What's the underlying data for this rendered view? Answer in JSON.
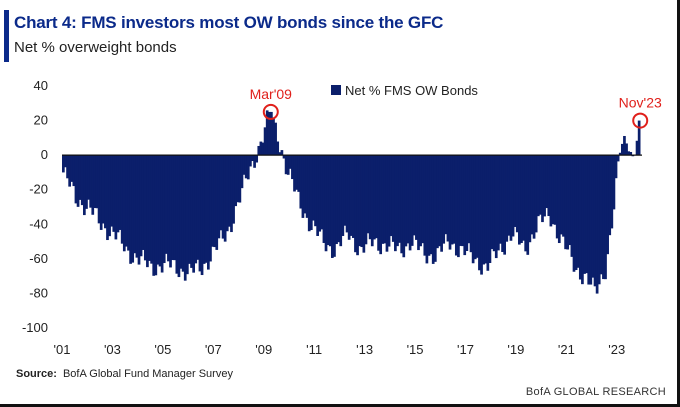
{
  "header": {
    "title": "Chart 4: FMS investors most OW bonds since the GFC",
    "subtitle": "Net % overweight bonds"
  },
  "footer": {
    "source_label": "Source:",
    "source_text": "BofA Global Fund Manager Survey",
    "brand": "BofA GLOBAL RESEARCH"
  },
  "colors": {
    "bar": "#0b1f6b",
    "highlight": "#e0201b",
    "title": "#0b2a8a"
  },
  "chart_data": {
    "type": "bar",
    "title": "Chart 4: FMS investors most OW bonds since the GFC",
    "ylabel": "Net % overweight bonds",
    "ylim": [
      -100,
      40
    ],
    "yticks": [
      40,
      20,
      0,
      -20,
      -40,
      -60,
      -80,
      -100
    ],
    "x_start": 2001,
    "x_end": 2024,
    "x_tick_labels": [
      "'01",
      "'03",
      "'05",
      "'07",
      "'09",
      "'11",
      "'13",
      "'15",
      "'17",
      "'19",
      "'21",
      "'23"
    ],
    "x_tick_years": [
      2001,
      2003,
      2005,
      2007,
      2009,
      2011,
      2013,
      2015,
      2017,
      2019,
      2021,
      2023
    ],
    "legend": "Net % FMS OW Bonds",
    "legend_position": "top-center",
    "annotations": [
      {
        "label": "Mar'09",
        "year": 2009.2,
        "value": 25
      },
      {
        "label": "Nov'23",
        "year": 2023.85,
        "value": 20
      }
    ],
    "keypoints_year": [
      2001.0,
      2001.5,
      2002.0,
      2002.5,
      2003.0,
      2003.5,
      2004.0,
      2004.5,
      2005.0,
      2005.5,
      2006.0,
      2006.5,
      2007.0,
      2007.5,
      2008.0,
      2008.5,
      2008.9,
      2009.2,
      2009.5,
      2009.9,
      2010.3,
      2010.8,
      2011.3,
      2011.8,
      2012.3,
      2012.8,
      2013.3,
      2013.8,
      2014.3,
      2014.8,
      2015.3,
      2015.8,
      2016.3,
      2016.8,
      2017.3,
      2017.8,
      2018.3,
      2018.8,
      2019.3,
      2019.8,
      2020.3,
      2020.8,
      2021.3,
      2021.7,
      2022.1,
      2022.5,
      2022.8,
      2023.1,
      2023.4,
      2023.6,
      2023.85
    ],
    "keypoints_value": [
      -10,
      -25,
      -30,
      -40,
      -45,
      -55,
      -60,
      -65,
      -63,
      -65,
      -68,
      -65,
      -55,
      -45,
      -25,
      -5,
      10,
      25,
      12,
      -10,
      -25,
      -40,
      -50,
      -55,
      -45,
      -55,
      -50,
      -52,
      -55,
      -50,
      -57,
      -58,
      -50,
      -55,
      -60,
      -65,
      -55,
      -45,
      -55,
      -40,
      -35,
      -50,
      -65,
      -70,
      -80,
      -65,
      -35,
      5,
      10,
      -3,
      20
    ]
  }
}
